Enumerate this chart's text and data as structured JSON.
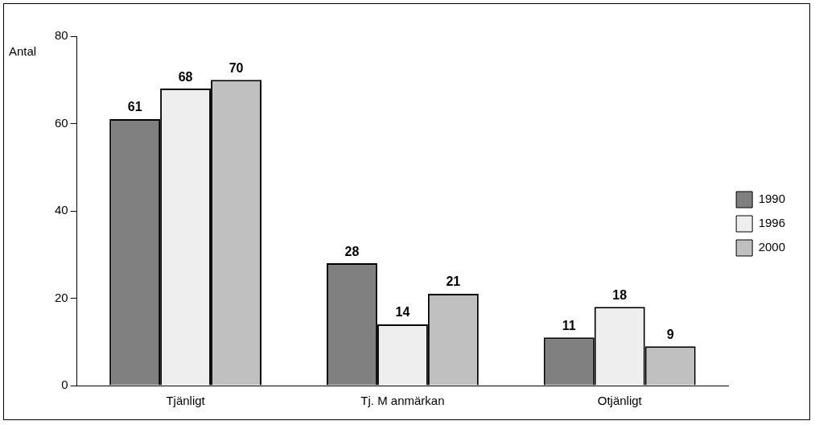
{
  "chart_data": {
    "type": "bar",
    "ylabel": "Antal",
    "categories": [
      "Tjänligt",
      "Tj. M anmärkan",
      "Otjänligt"
    ],
    "series": [
      {
        "name": "1990",
        "color": "#808080",
        "values": [
          61,
          28,
          11
        ]
      },
      {
        "name": "1996",
        "color": "#eeeeee",
        "values": [
          68,
          14,
          18
        ]
      },
      {
        "name": "2000",
        "color": "#c0c0c0",
        "values": [
          70,
          21,
          9
        ]
      }
    ],
    "ylim": [
      0,
      80
    ],
    "yticks": [
      0,
      20,
      40,
      60,
      80
    ],
    "grid": false,
    "legend": "right",
    "data_labels": true
  }
}
